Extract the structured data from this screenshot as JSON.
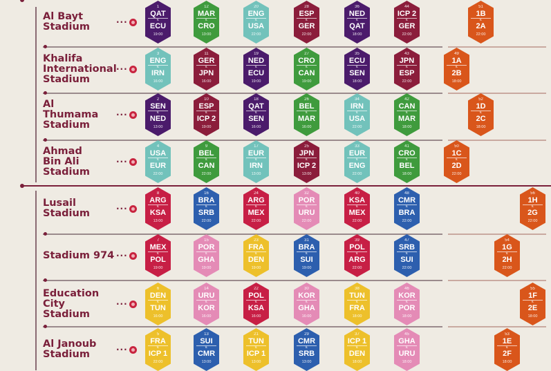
{
  "palette": {
    "purple": "#4b1b6b",
    "green": "#3f9b3d",
    "teal": "#72c2bb",
    "maroon": "#8b1d3b",
    "orange": "#d9561b",
    "red": "#c71f45",
    "blue": "#2d5fae",
    "pink": "#e48bb6",
    "yellow": "#edc02b"
  },
  "vs_label": "v.",
  "stadiums": [
    {
      "name": [
        "Al Bayt",
        "Stadium"
      ],
      "matches": [
        {
          "no": "1",
          "home": "QAT",
          "away": "ECU",
          "time": "19:00",
          "color": "purple"
        },
        {
          "no": "12",
          "home": "MAR",
          "away": "CRO",
          "time": "13:00",
          "color": "green"
        },
        {
          "no": "20",
          "home": "ENG",
          "away": "USA",
          "time": "22:00",
          "color": "teal"
        },
        {
          "no": "28",
          "home": "ESP",
          "away": "GER",
          "time": "22:00",
          "color": "maroon"
        },
        {
          "no": "36",
          "home": "NED",
          "away": "QAT",
          "time": "18:00",
          "color": "purple"
        },
        {
          "no": "44",
          "home": "ICP 2",
          "away": "GER",
          "time": "22:00",
          "color": "maroon"
        },
        {
          "no": "51",
          "home": "1B",
          "away": "2A",
          "time": "22:00",
          "color": "orange"
        }
      ]
    },
    {
      "name": [
        "Khalifa",
        "International",
        "Stadium"
      ],
      "matches": [
        {
          "no": "3",
          "home": "ENG",
          "away": "IRN",
          "time": "16:00",
          "color": "teal"
        },
        {
          "no": "11",
          "home": "GER",
          "away": "JPN",
          "time": "16:00",
          "color": "maroon"
        },
        {
          "no": "19",
          "home": "NED",
          "away": "ECU",
          "time": "19:00",
          "color": "purple"
        },
        {
          "no": "27",
          "home": "CRO",
          "away": "CAN",
          "time": "19:00",
          "color": "green"
        },
        {
          "no": "35",
          "home": "ECU",
          "away": "SEN",
          "time": "18:00",
          "color": "purple"
        },
        {
          "no": "43",
          "home": "JPN",
          "away": "ESP",
          "time": "22:00",
          "color": "maroon"
        },
        {
          "no": "49",
          "home": "1A",
          "away": "2B",
          "time": "18:00",
          "color": "orange"
        }
      ]
    },
    {
      "name": [
        "Al",
        "Thumama",
        "Stadium"
      ],
      "matches": [
        {
          "no": "2",
          "home": "SEN",
          "away": "NED",
          "time": "13:00",
          "color": "purple"
        },
        {
          "no": "10",
          "home": "ESP",
          "away": "ICP 2",
          "time": "19:00",
          "color": "maroon"
        },
        {
          "no": "18",
          "home": "QAT",
          "away": "SEN",
          "time": "16:00",
          "color": "purple"
        },
        {
          "no": "26",
          "home": "BEL",
          "away": "MAR",
          "time": "16:00",
          "color": "green"
        },
        {
          "no": "34",
          "home": "IRN",
          "away": "USA",
          "time": "22:00",
          "color": "teal"
        },
        {
          "no": "42",
          "home": "CAN",
          "away": "MAR",
          "time": "18:00",
          "color": "green"
        },
        {
          "no": "52",
          "home": "1D",
          "away": "2C",
          "time": "18:00",
          "color": "orange"
        }
      ]
    },
    {
      "name": [
        "Ahmad",
        "Bin Ali",
        "Stadium"
      ],
      "matches": [
        {
          "no": "4",
          "home": "USA",
          "away": "EUR",
          "time": "22:00",
          "color": "teal"
        },
        {
          "no": "9",
          "home": "BEL",
          "away": "CAN",
          "time": "22:00",
          "color": "green"
        },
        {
          "no": "17",
          "home": "EUR",
          "away": "IRN",
          "time": "13:00",
          "color": "teal"
        },
        {
          "no": "25",
          "home": "JPN",
          "away": "ICP 2",
          "time": "13:00",
          "color": "maroon"
        },
        {
          "no": "33",
          "home": "EUR",
          "away": "ENG",
          "time": "22:00",
          "color": "teal"
        },
        {
          "no": "41",
          "home": "CRO",
          "away": "BEL",
          "time": "18:00",
          "color": "green"
        },
        {
          "no": "50",
          "home": "1C",
          "away": "2D",
          "time": "22:00",
          "color": "orange"
        }
      ]
    },
    {
      "name": [
        "Lusail",
        "Stadium"
      ],
      "matches": [
        {
          "no": "8",
          "home": "ARG",
          "away": "KSA",
          "time": "13:00",
          "color": "red"
        },
        {
          "no": "16",
          "home": "BRA",
          "away": "SRB",
          "time": "22:00",
          "color": "blue"
        },
        {
          "no": "24",
          "home": "ARG",
          "away": "MEX",
          "time": "22:00",
          "color": "red"
        },
        {
          "no": "32",
          "home": "POR",
          "away": "URU",
          "time": "22:00",
          "color": "pink"
        },
        {
          "no": "40",
          "home": "KSA",
          "away": "MEX",
          "time": "22:00",
          "color": "red"
        },
        {
          "no": "48",
          "home": "CMR",
          "away": "BRA",
          "time": "22:00",
          "color": "blue"
        },
        {
          "no": "56",
          "home": "1H",
          "away": "2G",
          "time": "22:00",
          "color": "orange"
        }
      ]
    },
    {
      "name": [
        "Stadium 974"
      ],
      "matches": [
        {
          "no": "7",
          "home": "MEX",
          "away": "POL",
          "time": "19:00",
          "color": "red"
        },
        {
          "no": "15",
          "home": "POR",
          "away": "GHA",
          "time": "19:00",
          "color": "pink"
        },
        {
          "no": "23",
          "home": "FRA",
          "away": "DEN",
          "time": "19:00",
          "color": "yellow"
        },
        {
          "no": "31",
          "home": "BRA",
          "away": "SUI",
          "time": "19:00",
          "color": "blue"
        },
        {
          "no": "39",
          "home": "POL",
          "away": "ARG",
          "time": "22:00",
          "color": "red"
        },
        {
          "no": "47",
          "home": "SRB",
          "away": "SUI",
          "time": "22:00",
          "color": "blue"
        },
        {
          "no": "54",
          "home": "1G",
          "away": "2H",
          "time": "22:00",
          "color": "orange"
        }
      ]
    },
    {
      "name": [
        "Education",
        "City",
        "Stadium"
      ],
      "matches": [
        {
          "no": "6",
          "home": "DEN",
          "away": "TUN",
          "time": "16:00",
          "color": "yellow"
        },
        {
          "no": "14",
          "home": "URU",
          "away": "KOR",
          "time": "16:00",
          "color": "pink"
        },
        {
          "no": "22",
          "home": "POL",
          "away": "KSA",
          "time": "16:00",
          "color": "red"
        },
        {
          "no": "30",
          "home": "KOR",
          "away": "GHA",
          "time": "16:00",
          "color": "pink"
        },
        {
          "no": "38",
          "home": "TUN",
          "away": "FRA",
          "time": "18:00",
          "color": "yellow"
        },
        {
          "no": "46",
          "home": "KOR",
          "away": "POR",
          "time": "18:00",
          "color": "pink"
        },
        {
          "no": "55",
          "home": "1F",
          "away": "2E",
          "time": "18:00",
          "color": "orange"
        }
      ]
    },
    {
      "name": [
        "Al Janoub",
        "Stadium"
      ],
      "matches": [
        {
          "no": "5",
          "home": "FRA",
          "away": "ICP 1",
          "time": "22:00",
          "color": "yellow"
        },
        {
          "no": "13",
          "home": "SUI",
          "away": "CMR",
          "time": "13:00",
          "color": "blue"
        },
        {
          "no": "21",
          "home": "TUN",
          "away": "ICP 1",
          "time": "13:00",
          "color": "yellow"
        },
        {
          "no": "29",
          "home": "CMR",
          "away": "SRB",
          "time": "13:00",
          "color": "blue"
        },
        {
          "no": "37",
          "home": "ICP 1",
          "away": "DEN",
          "time": "18:00",
          "color": "yellow"
        },
        {
          "no": "45",
          "home": "GHA",
          "away": "URU",
          "time": "18:00",
          "color": "pink"
        },
        {
          "no": "53",
          "home": "1E",
          "away": "2F",
          "time": "18:00",
          "color": "orange"
        }
      ]
    }
  ]
}
